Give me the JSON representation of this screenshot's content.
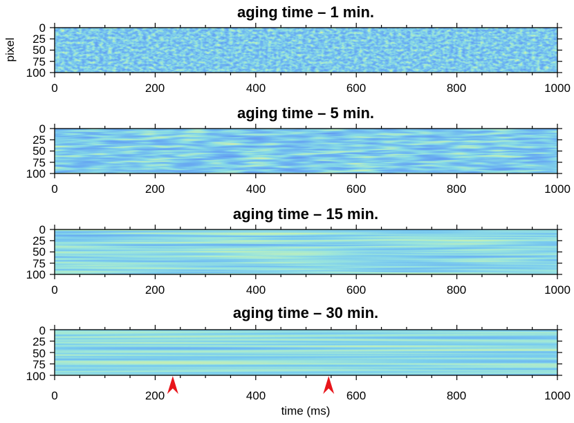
{
  "chart_data": [
    {
      "type": "heatmap",
      "title": "aging time – 1 min.",
      "xlabel": "",
      "ylabel": "pixel",
      "xlim": [
        0,
        1000
      ],
      "ylim": [
        0,
        100
      ],
      "x_ticks": [
        "0",
        "200",
        "400",
        "600",
        "800",
        "1000"
      ],
      "y_ticks": [
        "0",
        "25",
        "50",
        "75",
        "100"
      ],
      "pattern": "speckle"
    },
    {
      "type": "heatmap",
      "title": "aging time – 5 min.",
      "xlabel": "",
      "ylabel": "",
      "xlim": [
        0,
        1000
      ],
      "ylim": [
        0,
        100
      ],
      "x_ticks": [
        "0",
        "200",
        "400",
        "600",
        "800",
        "1000"
      ],
      "y_ticks": [
        "0",
        "25",
        "50",
        "75",
        "100"
      ],
      "pattern": "streaks"
    },
    {
      "type": "heatmap",
      "title": "aging time – 15 min.",
      "xlabel": "",
      "ylabel": "",
      "xlim": [
        0,
        1000
      ],
      "ylim": [
        0,
        100
      ],
      "x_ticks": [
        "0",
        "200",
        "400",
        "600",
        "800",
        "1000"
      ],
      "y_ticks": [
        "0",
        "25",
        "50",
        "75",
        "100"
      ],
      "pattern": "bands"
    },
    {
      "type": "heatmap",
      "title": "aging time – 30 min.",
      "xlabel": "time (ms)",
      "ylabel": "",
      "xlim": [
        0,
        1000
      ],
      "ylim": [
        0,
        100
      ],
      "x_ticks": [
        "0",
        "200",
        "400",
        "600",
        "800",
        "1000"
      ],
      "y_ticks": [
        "0",
        "25",
        "50",
        "75",
        "100"
      ],
      "pattern": "bands-with-events",
      "event_markers_ms": [
        235,
        545
      ],
      "marker_color": "#e8151b"
    }
  ],
  "colors": {
    "background": "#2a56e0",
    "marker": "#e8151b"
  }
}
